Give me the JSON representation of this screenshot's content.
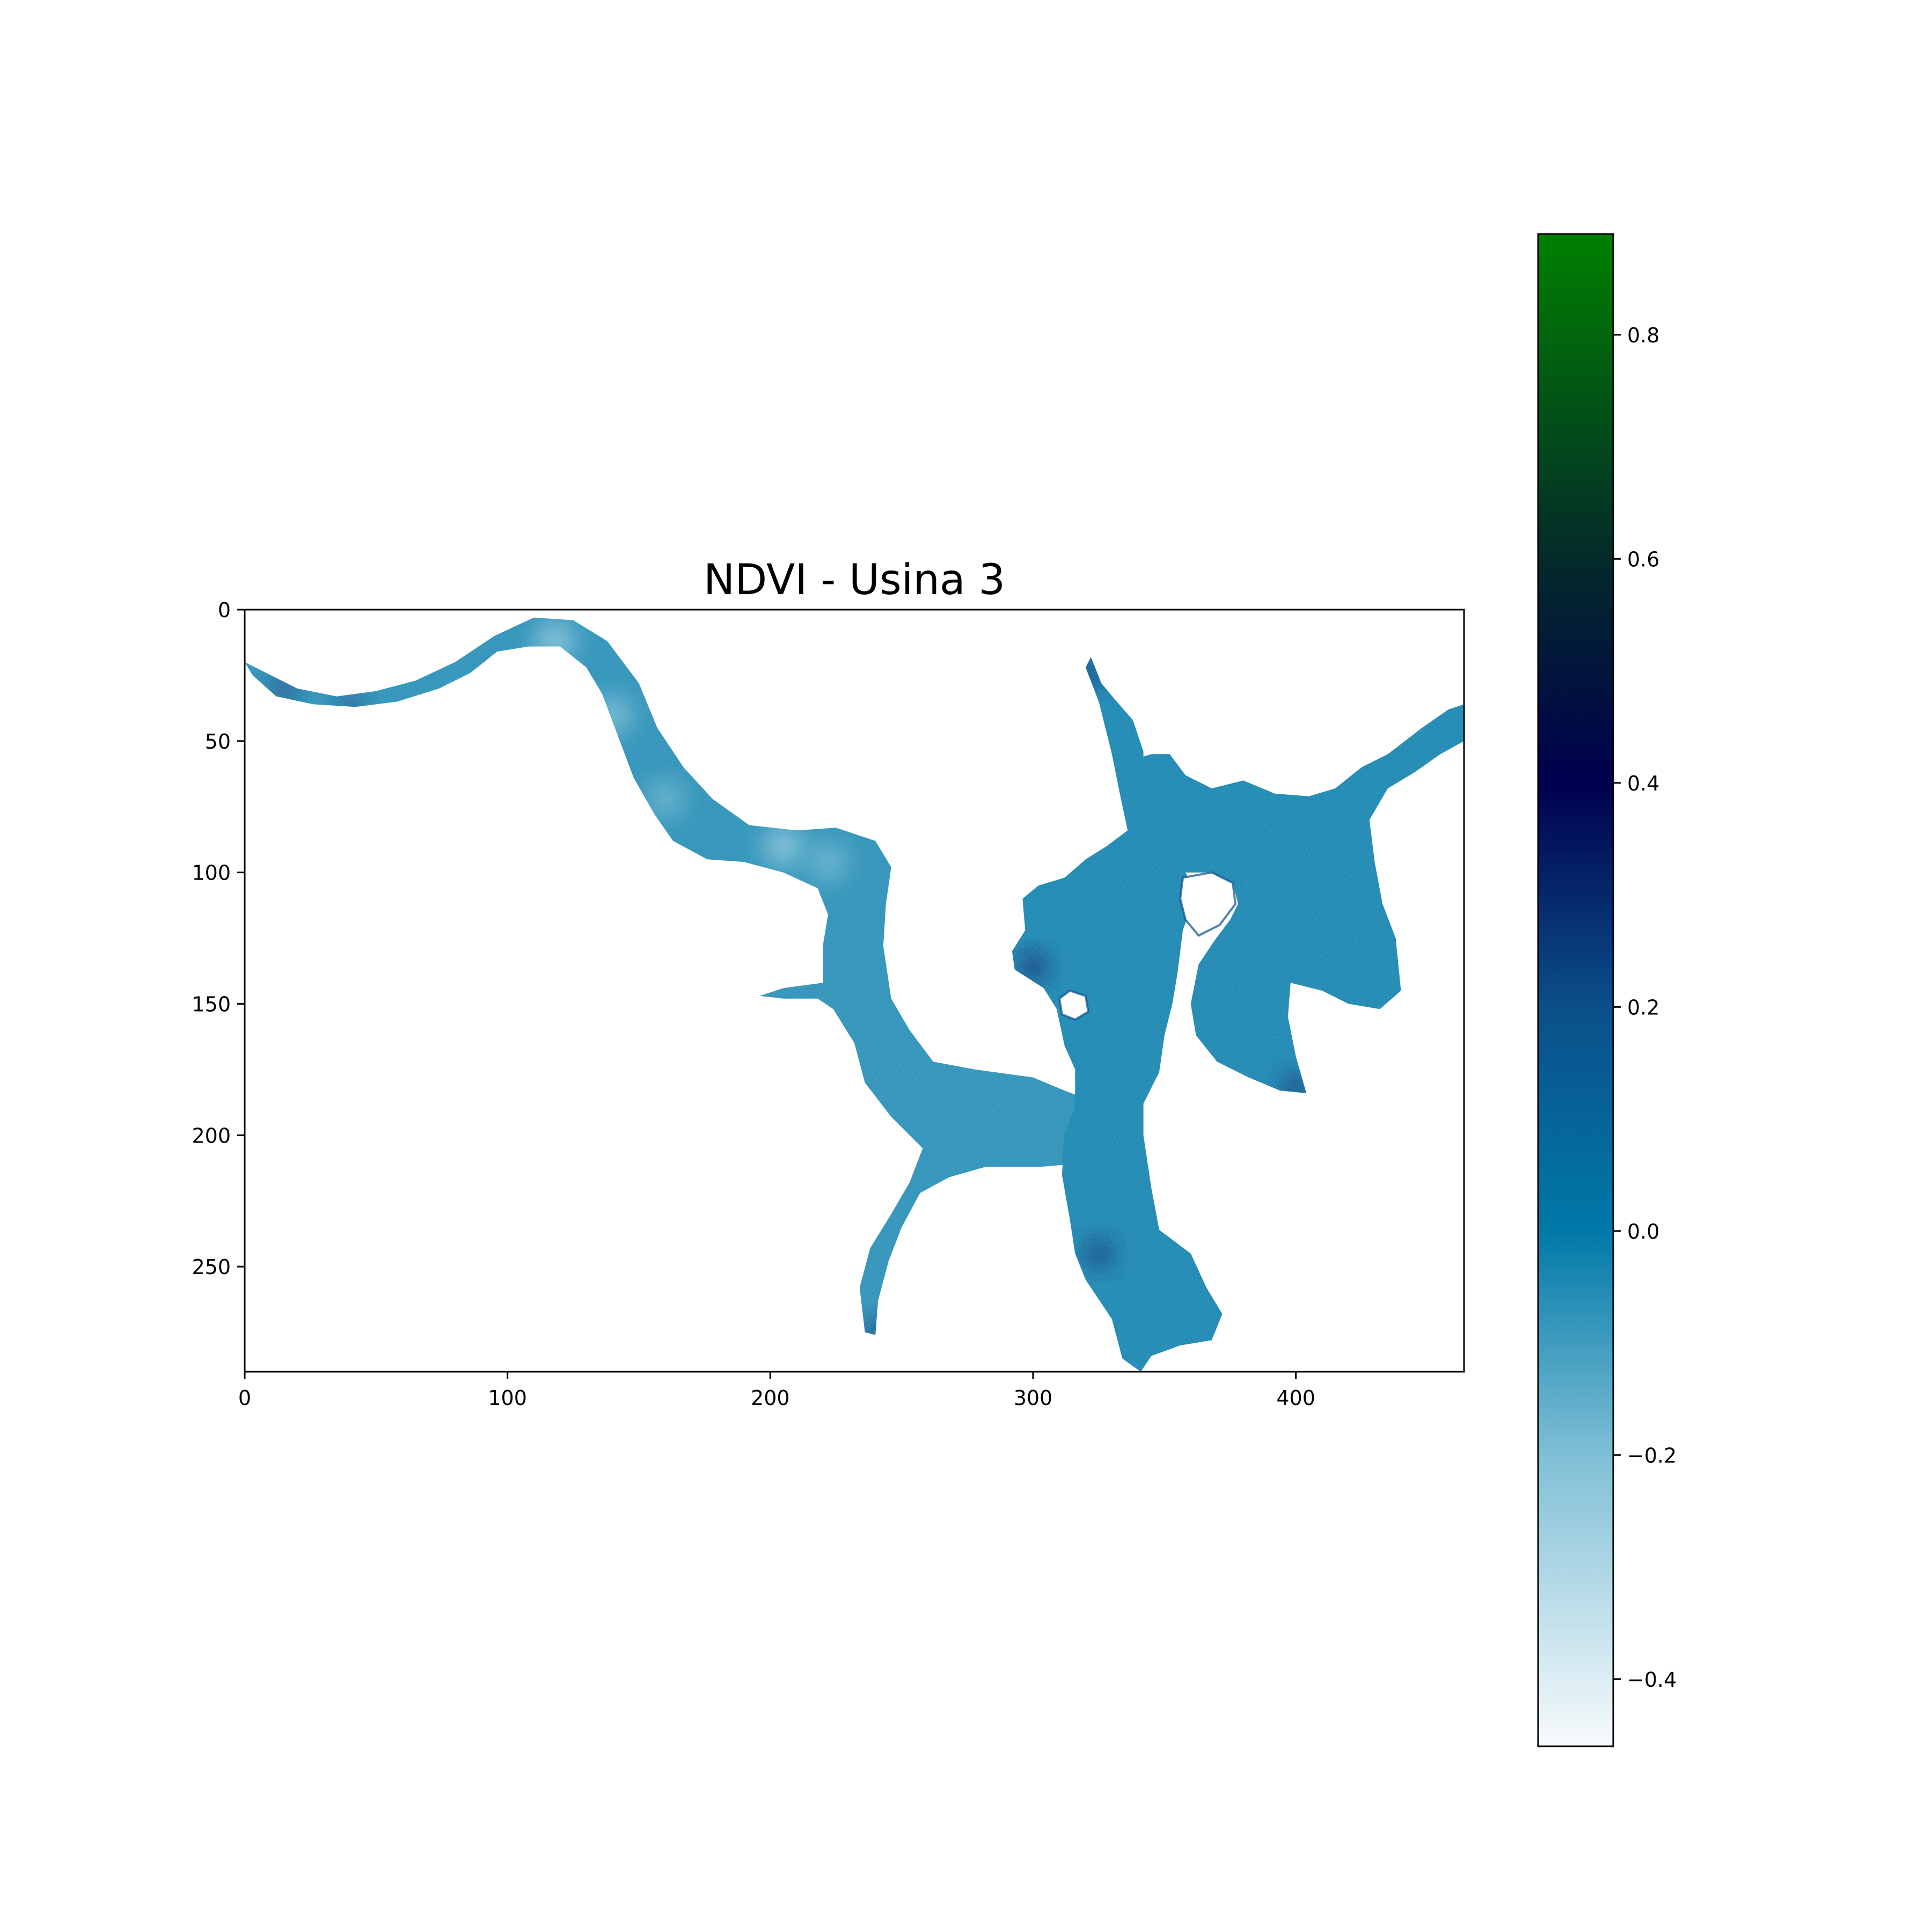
{
  "chart_data": {
    "type": "heatmap",
    "title": "NDVI - Usina 3",
    "xlabel": "",
    "ylabel": "",
    "xlim": [
      0,
      464
    ],
    "ylim": [
      290,
      0
    ],
    "x_ticks": [
      0,
      100,
      200,
      300,
      400
    ],
    "y_ticks": [
      0,
      50,
      100,
      150,
      200,
      250
    ],
    "x_tick_labels": [
      "0",
      "100",
      "200",
      "300",
      "400"
    ],
    "y_tick_labels": [
      "0",
      "50",
      "100",
      "150",
      "200",
      "250"
    ],
    "grid": false,
    "legend": "none",
    "colormap": {
      "name": "ocean_r",
      "vmin": -0.46,
      "vmax": 0.89,
      "stops": [
        {
          "value": -0.46,
          "color": "#f7fbfc"
        },
        {
          "value": -0.2,
          "color": "#7fbfd6"
        },
        {
          "value": 0.0,
          "color": "#0079a8"
        },
        {
          "value": 0.2,
          "color": "#0b4f8a"
        },
        {
          "value": 0.4,
          "color": "#00004f"
        },
        {
          "value": 0.6,
          "color": "#042a2a"
        },
        {
          "value": 0.89,
          "color": "#008000"
        }
      ],
      "ticks": [
        -0.4,
        -0.2,
        0.0,
        0.2,
        0.4,
        0.6,
        0.8
      ],
      "tick_labels": [
        "−0.4",
        "−0.2",
        "0.0",
        "0.2",
        "0.4",
        "0.6",
        "0.8"
      ]
    },
    "regions": [
      {
        "description": "upstream river channel",
        "value": -0.05,
        "outline": [
          [
            0,
            20
          ],
          [
            10,
            25
          ],
          [
            20,
            30
          ],
          [
            35,
            33
          ],
          [
            50,
            31
          ],
          [
            65,
            27
          ],
          [
            80,
            20
          ],
          [
            95,
            10
          ],
          [
            110,
            3
          ],
          [
            125,
            4
          ],
          [
            138,
            12
          ],
          [
            150,
            28
          ],
          [
            157,
            45
          ],
          [
            167,
            60
          ],
          [
            178,
            72
          ],
          [
            192,
            82
          ],
          [
            210,
            84
          ],
          [
            225,
            83
          ],
          [
            240,
            88
          ],
          [
            246,
            98
          ],
          [
            244,
            112
          ],
          [
            243,
            128
          ],
          [
            246,
            148
          ],
          [
            253,
            160
          ],
          [
            262,
            172
          ],
          [
            278,
            175
          ],
          [
            300,
            178
          ],
          [
            312,
            183
          ],
          [
            325,
            188
          ],
          [
            327,
            210
          ],
          [
            303,
            212
          ],
          [
            282,
            212
          ],
          [
            268,
            216
          ],
          [
            257,
            222
          ],
          [
            250,
            235
          ],
          [
            245,
            248
          ],
          [
            241,
            263
          ],
          [
            240,
            276
          ],
          [
            236,
            275
          ],
          [
            234,
            258
          ],
          [
            238,
            243
          ],
          [
            246,
            230
          ],
          [
            253,
            218
          ],
          [
            258,
            205
          ],
          [
            246,
            193
          ],
          [
            236,
            180
          ],
          [
            232,
            165
          ],
          [
            224,
            152
          ],
          [
            218,
            148
          ],
          [
            205,
            148
          ],
          [
            196,
            147
          ],
          [
            205,
            144
          ],
          [
            220,
            142
          ],
          [
            220,
            128
          ],
          [
            222,
            116
          ],
          [
            218,
            106
          ],
          [
            205,
            100
          ],
          [
            190,
            96
          ],
          [
            176,
            95
          ],
          [
            163,
            88
          ],
          [
            156,
            78
          ],
          [
            148,
            64
          ],
          [
            142,
            48
          ],
          [
            136,
            32
          ],
          [
            130,
            22
          ],
          [
            120,
            14
          ],
          [
            108,
            14
          ],
          [
            96,
            16
          ],
          [
            86,
            24
          ],
          [
            74,
            30
          ],
          [
            58,
            35
          ],
          [
            42,
            37
          ],
          [
            26,
            36
          ],
          [
            12,
            33
          ],
          [
            3,
            25
          ]
        ]
      },
      {
        "description": "main reservoir body",
        "value": -0.02,
        "outline": [
          [
            322,
            18
          ],
          [
            326,
            28
          ],
          [
            331,
            34
          ],
          [
            338,
            42
          ],
          [
            342,
            54
          ],
          [
            342,
            66
          ],
          [
            348,
            80
          ],
          [
            357,
            98
          ],
          [
            362,
            108
          ],
          [
            357,
            122
          ],
          [
            355,
            138
          ],
          [
            353,
            150
          ],
          [
            350,
            162
          ],
          [
            348,
            176
          ],
          [
            342,
            188
          ],
          [
            342,
            200
          ],
          [
            345,
            220
          ],
          [
            348,
            236
          ],
          [
            360,
            245
          ],
          [
            366,
            258
          ],
          [
            372,
            268
          ],
          [
            368,
            278
          ],
          [
            356,
            280
          ],
          [
            345,
            284
          ],
          [
            341,
            290
          ],
          [
            334,
            285
          ],
          [
            330,
            270
          ],
          [
            320,
            255
          ],
          [
            316,
            245
          ],
          [
            314,
            232
          ],
          [
            311,
            215
          ],
          [
            312,
            200
          ],
          [
            316,
            190
          ],
          [
            316,
            175
          ],
          [
            312,
            166
          ],
          [
            309,
            152
          ],
          [
            304,
            144
          ],
          [
            293,
            137
          ],
          [
            292,
            130
          ],
          [
            297,
            122
          ],
          [
            296,
            110
          ],
          [
            302,
            105
          ],
          [
            312,
            102
          ],
          [
            320,
            95
          ],
          [
            328,
            90
          ],
          [
            336,
            84
          ],
          [
            333,
            70
          ],
          [
            330,
            55
          ],
          [
            325,
            35
          ],
          [
            320,
            22
          ]
        ]
      },
      {
        "description": "eastern arm",
        "value": -0.02,
        "outline": [
          [
            335,
            58
          ],
          [
            345,
            55
          ],
          [
            352,
            55
          ],
          [
            358,
            63
          ],
          [
            368,
            68
          ],
          [
            380,
            65
          ],
          [
            392,
            70
          ],
          [
            405,
            71
          ],
          [
            415,
            68
          ],
          [
            425,
            60
          ],
          [
            435,
            55
          ],
          [
            448,
            45
          ],
          [
            458,
            38
          ],
          [
            464,
            36
          ],
          [
            464,
            50
          ],
          [
            455,
            55
          ],
          [
            445,
            62
          ],
          [
            435,
            68
          ],
          [
            428,
            80
          ],
          [
            430,
            96
          ],
          [
            433,
            112
          ],
          [
            438,
            125
          ],
          [
            440,
            145
          ],
          [
            432,
            152
          ],
          [
            420,
            150
          ],
          [
            410,
            145
          ],
          [
            398,
            142
          ],
          [
            397,
            155
          ],
          [
            400,
            170
          ],
          [
            404,
            184
          ],
          [
            394,
            183
          ],
          [
            382,
            178
          ],
          [
            370,
            172
          ],
          [
            362,
            162
          ],
          [
            360,
            150
          ],
          [
            363,
            135
          ],
          [
            369,
            126
          ],
          [
            375,
            118
          ],
          [
            378,
            112
          ],
          [
            376,
            104
          ],
          [
            368,
            100
          ],
          [
            358,
            100
          ],
          [
            345,
            98
          ],
          [
            342,
            88
          ],
          [
            338,
            75
          ]
        ]
      }
    ],
    "islands": [
      [
        [
          310,
          148
        ],
        [
          314,
          145
        ],
        [
          320,
          147
        ],
        [
          321,
          153
        ],
        [
          316,
          156
        ],
        [
          311,
          154
        ]
      ],
      [
        [
          357,
          102
        ],
        [
          368,
          100
        ],
        [
          376,
          104
        ],
        [
          377,
          112
        ],
        [
          371,
          120
        ],
        [
          363,
          124
        ],
        [
          358,
          118
        ],
        [
          356,
          110
        ]
      ]
    ],
    "light_patches": [
      {
        "x": 118,
        "y": 12,
        "value": -0.2
      },
      {
        "x": 140,
        "y": 40,
        "value": -0.17
      },
      {
        "x": 160,
        "y": 72,
        "value": -0.14
      },
      {
        "x": 205,
        "y": 90,
        "value": -0.2
      },
      {
        "x": 222,
        "y": 96,
        "value": -0.15
      }
    ],
    "dark_patches": [
      {
        "x": 15,
        "y": 30,
        "value": 0.25
      },
      {
        "x": 40,
        "y": 36,
        "value": 0.2
      },
      {
        "x": 300,
        "y": 136,
        "value": 0.35
      },
      {
        "x": 400,
        "y": 182,
        "value": 0.3
      },
      {
        "x": 322,
        "y": 24,
        "value": 0.3
      },
      {
        "x": 242,
        "y": 275,
        "value": 0.3
      },
      {
        "x": 325,
        "y": 245,
        "value": 0.3
      }
    ]
  }
}
